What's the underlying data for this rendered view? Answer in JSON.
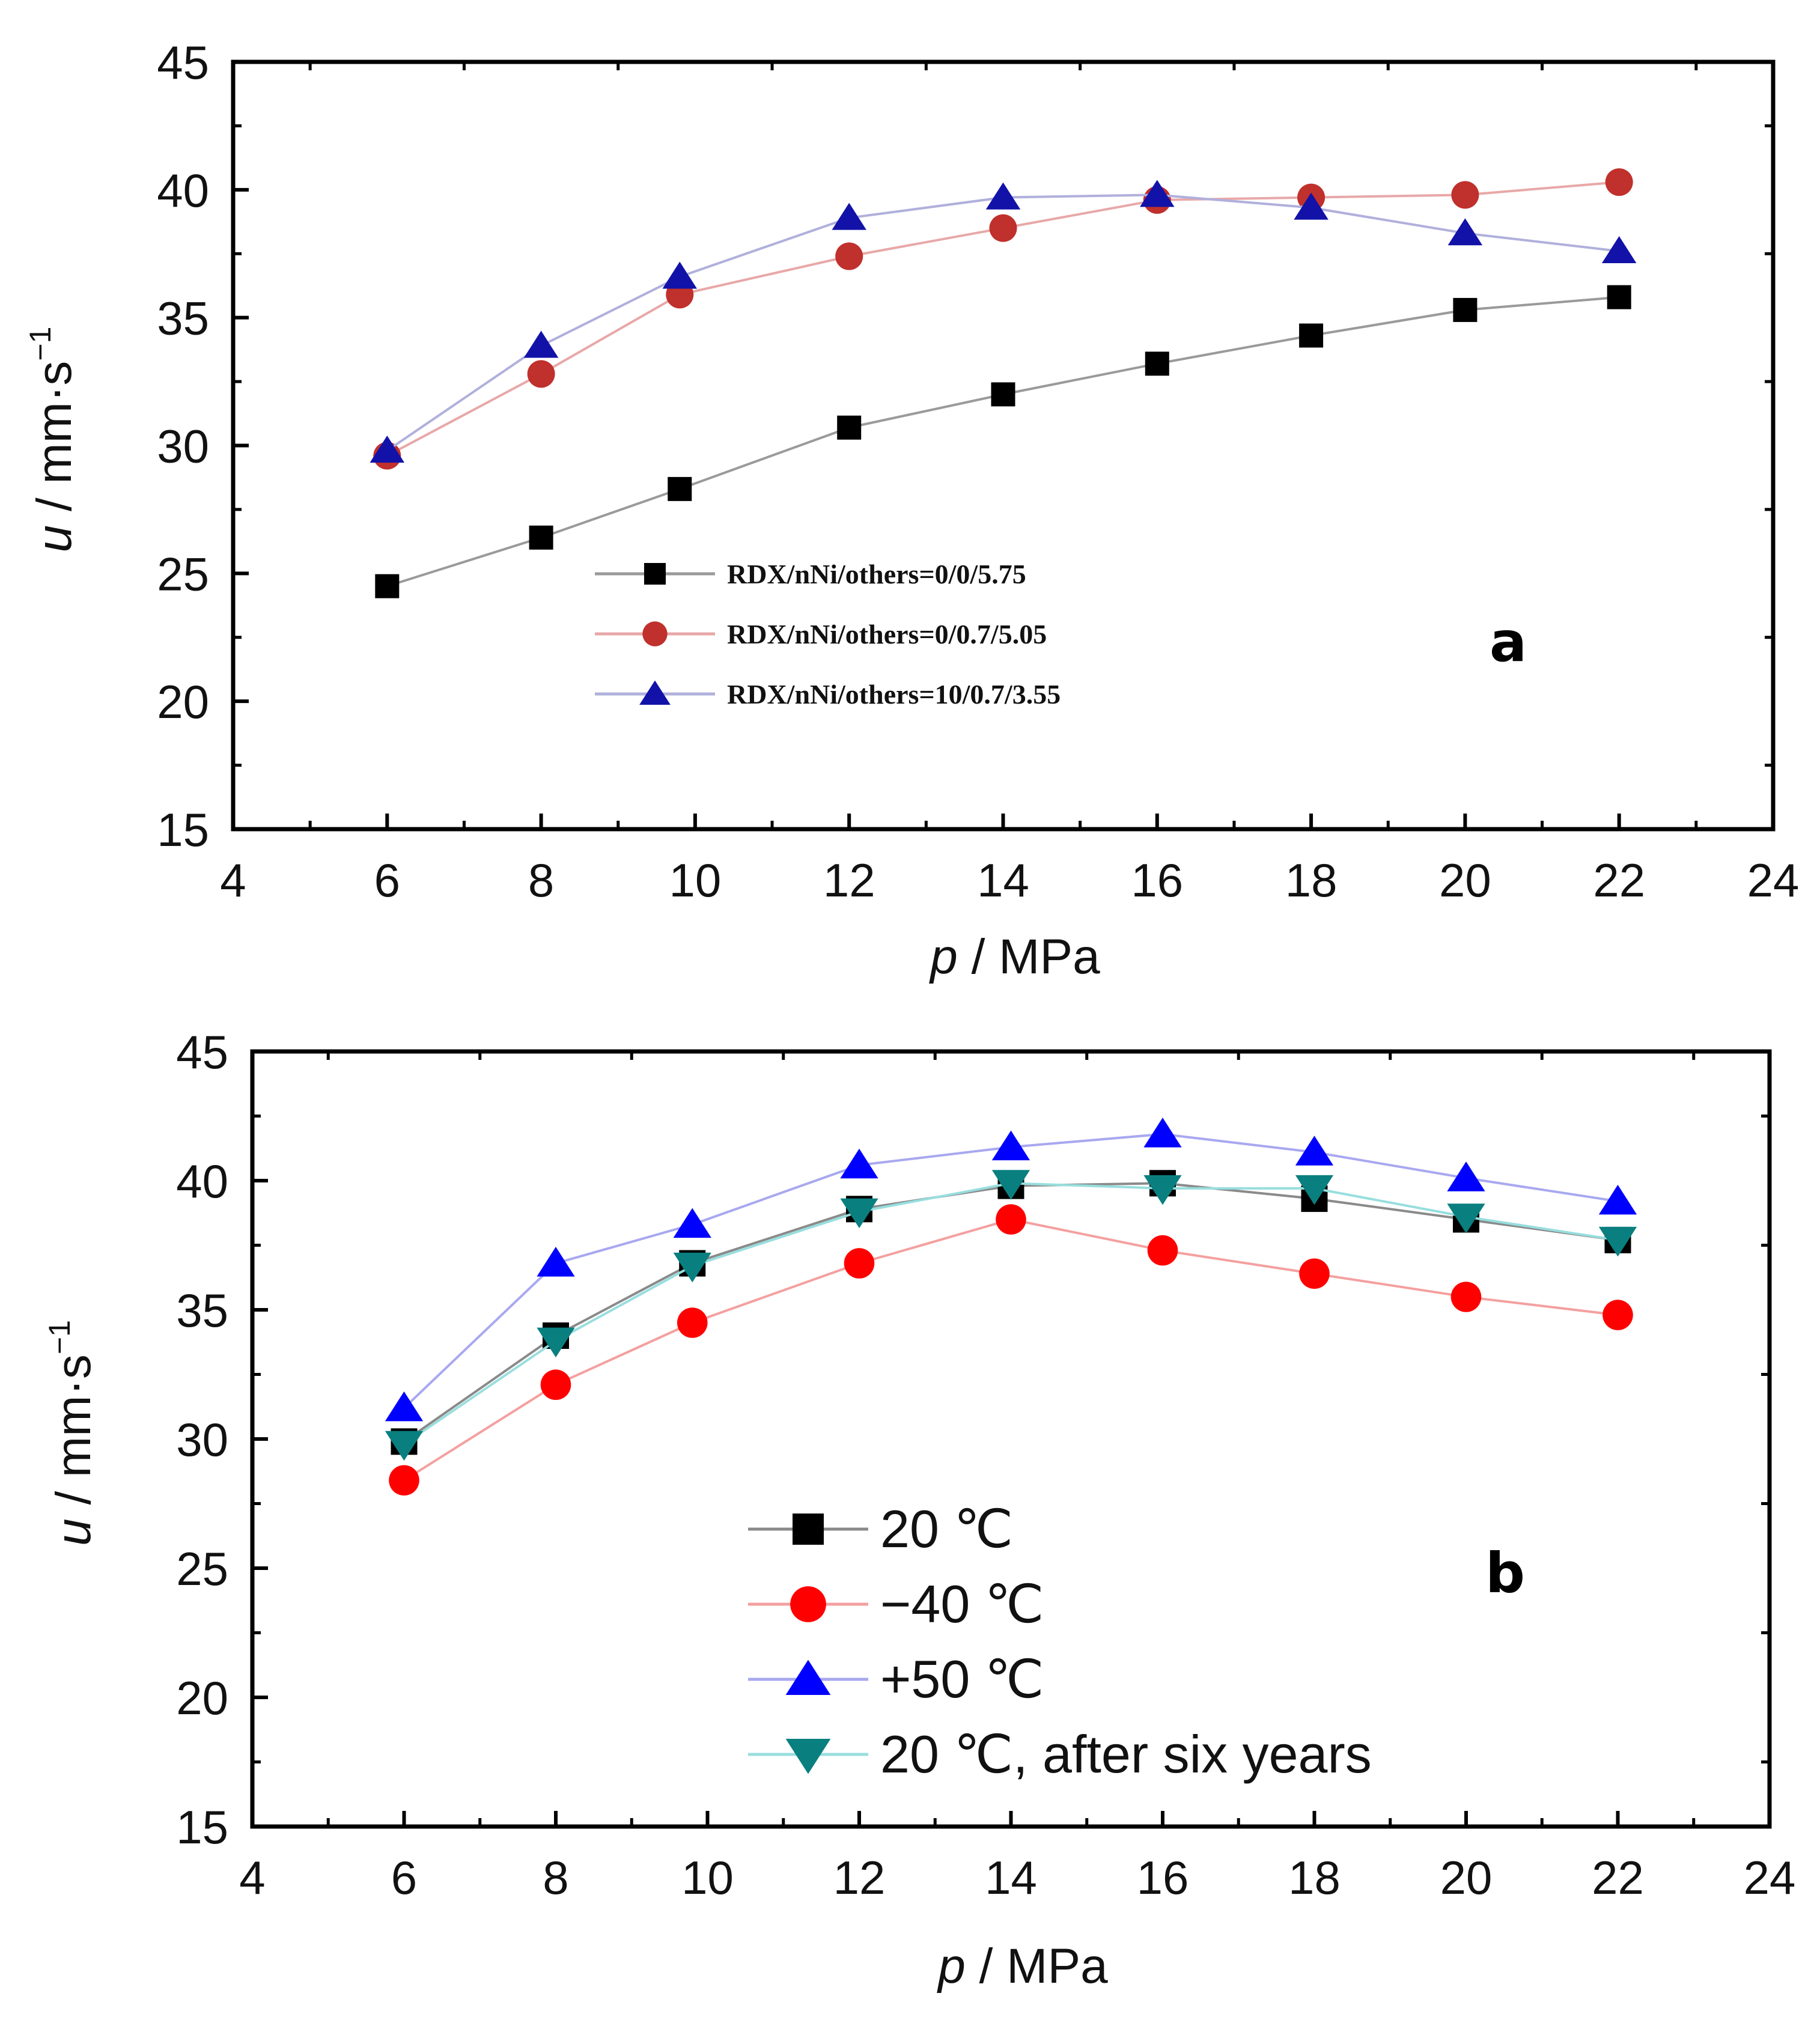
{
  "chart_data": [
    {
      "type": "line",
      "panel_label": "a",
      "xlabel_var": "p",
      "xlabel_unit": " / MPa",
      "ylabel_var": "u",
      "ylabel_unit": " / mm·s",
      "ylabel_exp": "−1",
      "xlim": [
        4,
        24
      ],
      "ylim": [
        15,
        45
      ],
      "xticks": [
        4,
        6,
        8,
        10,
        12,
        14,
        16,
        18,
        20,
        22,
        24
      ],
      "yticks": [
        15,
        20,
        25,
        30,
        35,
        40,
        45
      ],
      "legend_location": "lower-center",
      "series": [
        {
          "name": "RDX/nNi/others=0/0/5.75",
          "marker": "square",
          "color": "#000000",
          "line_color": "#9a9a9a",
          "x": [
            6,
            8,
            9.8,
            12,
            14,
            16,
            18,
            20,
            22
          ],
          "y": [
            24.5,
            26.4,
            28.3,
            30.7,
            32.0,
            33.2,
            34.3,
            35.3,
            35.8
          ]
        },
        {
          "name": "RDX/nNi/others=0/0.7/5.05",
          "marker": "circle",
          "color": "#c0302c",
          "line_color": "#e8a8a8",
          "x": [
            6,
            8,
            9.8,
            12,
            14,
            16,
            18,
            20,
            22
          ],
          "y": [
            29.6,
            32.8,
            35.9,
            37.4,
            38.5,
            39.6,
            39.7,
            39.8,
            40.3
          ]
        },
        {
          "name": "RDX/nNi/others=10/0.7/3.55",
          "marker": "triangle-up",
          "color": "#1212a8",
          "line_color": "#b0b0dc",
          "x": [
            6,
            8,
            9.8,
            12,
            14,
            16,
            18,
            20,
            22
          ],
          "y": [
            29.8,
            33.9,
            36.6,
            38.9,
            39.7,
            39.8,
            39.3,
            38.3,
            37.6
          ]
        }
      ]
    },
    {
      "type": "line",
      "panel_label": "b",
      "xlabel_var": "p",
      "xlabel_unit": " / MPa",
      "ylabel_var": "u",
      "ylabel_unit": " / mm·s",
      "ylabel_exp": "−1",
      "xlim": [
        4,
        24
      ],
      "ylim": [
        15,
        45
      ],
      "xticks": [
        4,
        6,
        8,
        10,
        12,
        14,
        16,
        18,
        20,
        22,
        24
      ],
      "yticks": [
        15,
        20,
        25,
        30,
        35,
        40,
        45
      ],
      "legend_location": "lower-center",
      "series": [
        {
          "name": "20 ℃",
          "marker": "square",
          "color": "#000000",
          "line_color": "#8a8a8a",
          "x": [
            6,
            8,
            9.8,
            12,
            14,
            16,
            18,
            20,
            22
          ],
          "y": [
            29.9,
            34.0,
            36.8,
            38.9,
            39.8,
            39.9,
            39.3,
            38.5,
            37.7
          ]
        },
        {
          "name": "−40 ℃",
          "marker": "circle",
          "color": "#ff0000",
          "line_color": "#f4a0a0",
          "x": [
            6,
            8,
            9.8,
            12,
            14,
            16,
            18,
            20,
            22
          ],
          "y": [
            28.4,
            32.1,
            34.5,
            36.8,
            38.5,
            37.3,
            36.4,
            35.5,
            34.8
          ]
        },
        {
          "name": "+50 ℃",
          "marker": "triangle-up",
          "color": "#0000ff",
          "line_color": "#a8a8f0",
          "x": [
            6,
            8,
            9.8,
            12,
            14,
            16,
            18,
            20,
            22
          ],
          "y": [
            31.2,
            36.8,
            38.3,
            40.6,
            41.3,
            41.8,
            41.1,
            40.1,
            39.2
          ]
        },
        {
          "name": "20 ℃, after six years",
          "marker": "triangle-down",
          "color": "#0a7f7f",
          "line_color": "#98dede",
          "x": [
            6,
            8,
            9.8,
            12,
            14,
            16,
            18,
            20,
            22
          ],
          "y": [
            29.8,
            33.8,
            36.7,
            38.8,
            39.9,
            39.7,
            39.7,
            38.6,
            37.7
          ]
        }
      ]
    }
  ]
}
